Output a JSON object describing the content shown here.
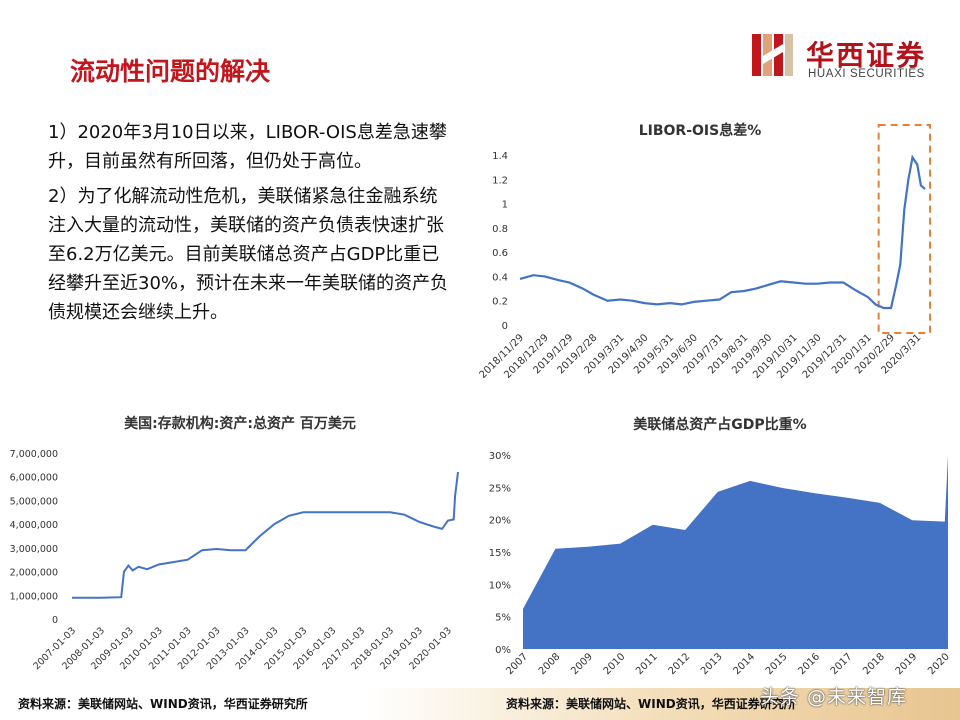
{
  "title": "流动性问题的解决",
  "logo": {
    "cn": "华西证券",
    "en": "HUAXI SECURITIES"
  },
  "paragraphs": [
    "1）2020年3月10日以来，LIBOR-OIS息差急速攀升，目前虽然有所回落，但仍处于高位。",
    "2）为了化解流动性危机，美联储紧急往金融系统注入大量的流动性，美联储的资产负债表快速扩张至6.2万亿美元。目前美联储总资产占GDP比重已经攀升至近30%，预计在未来一年美联储的资产负债规模还会继续上升。"
  ],
  "sources": {
    "left": "资料来源：美联储网站、WIND资讯，华西证券研究所",
    "right": "资料来源：美联储网站、WIND资讯，华西证券研究所"
  },
  "watermark": "头条 @未来智库",
  "colors": {
    "series": "#4472c4",
    "title_red": "#c0161c",
    "highlight_box": "#ed7d31"
  },
  "chart_data": [
    {
      "type": "line",
      "title": "LIBOR-OIS息差%",
      "ylim": [
        0,
        1.4
      ],
      "yticks": [
        "0",
        "0.2",
        "0.4",
        "0.6",
        "0.8",
        "1",
        "1.2",
        "1.4"
      ],
      "xticks": [
        "2018/11/29",
        "2018/12/29",
        "2019/1/29",
        "2019/2/28",
        "2019/3/31",
        "2019/4/30",
        "2019/5/31",
        "2019/6/30",
        "2019/7/31",
        "2019/8/31",
        "2019/9/30",
        "2019/10/31",
        "2019/11/30",
        "2019/12/31",
        "2020/1/31",
        "2020/2/29",
        "2020/3/31"
      ],
      "grid": false,
      "annotation": "dashed orange box highlighting 2020/3",
      "series": [
        {
          "x": [
            "2018/11/29",
            "2018/12/15",
            "2018/12/29",
            "2019/1/15",
            "2019/1/29",
            "2019/2/15",
            "2019/2/28",
            "2019/3/15",
            "2019/3/31",
            "2019/4/15",
            "2019/4/30",
            "2019/5/15",
            "2019/5/31",
            "2019/6/15",
            "2019/6/30",
            "2019/7/15",
            "2019/7/31",
            "2019/8/15",
            "2019/8/31",
            "2019/9/15",
            "2019/9/30",
            "2019/10/15",
            "2019/10/31",
            "2019/11/15",
            "2019/11/30",
            "2019/12/15",
            "2019/12/31",
            "2020/1/15",
            "2020/1/31",
            "2020/2/10",
            "2020/2/20",
            "2020/2/29",
            "2020/3/5",
            "2020/3/10",
            "2020/3/15",
            "2020/3/20",
            "2020/3/25",
            "2020/3/31",
            "2020/4/5",
            "2020/4/10"
          ],
          "y": [
            0.38,
            0.41,
            0.4,
            0.37,
            0.35,
            0.3,
            0.25,
            0.2,
            0.21,
            0.2,
            0.18,
            0.17,
            0.18,
            0.17,
            0.19,
            0.2,
            0.21,
            0.27,
            0.28,
            0.3,
            0.33,
            0.36,
            0.35,
            0.34,
            0.34,
            0.35,
            0.35,
            0.29,
            0.23,
            0.17,
            0.14,
            0.14,
            0.33,
            0.5,
            0.95,
            1.2,
            1.38,
            1.32,
            1.15,
            1.12
          ]
        }
      ]
    },
    {
      "type": "line",
      "title": "美国:存款机构:资产:总资产 百万美元",
      "ylim": [
        0,
        7000000
      ],
      "yticks": [
        "0",
        "1,000,000",
        "2,000,000",
        "3,000,000",
        "4,000,000",
        "5,000,000",
        "6,000,000",
        "7,000,000"
      ],
      "xticks": [
        "2007-01-03",
        "2008-01-03",
        "2009-01-03",
        "2010-01-03",
        "2011-01-03",
        "2012-01-03",
        "2013-01-03",
        "2014-01-03",
        "2015-01-03",
        "2016-01-03",
        "2017-01-03",
        "2018-01-03",
        "2019-01-03",
        "2020-01-03"
      ],
      "grid": false,
      "series": [
        {
          "x": [
            2007.0,
            2008.0,
            2008.7,
            2008.8,
            2008.95,
            2009.1,
            2009.3,
            2009.6,
            2010.0,
            2010.5,
            2011.0,
            2011.5,
            2012.0,
            2012.5,
            2013.0,
            2013.5,
            2014.0,
            2014.5,
            2015.0,
            2016.0,
            2017.0,
            2018.0,
            2018.5,
            2019.0,
            2019.5,
            2019.8,
            2020.0,
            2020.2,
            2020.25,
            2020.35
          ],
          "y": [
            900000,
            900000,
            920000,
            2000000,
            2250000,
            2050000,
            2200000,
            2100000,
            2300000,
            2400000,
            2500000,
            2900000,
            2950000,
            2900000,
            2900000,
            3500000,
            4000000,
            4350000,
            4500000,
            4500000,
            4500000,
            4500000,
            4400000,
            4100000,
            3900000,
            3800000,
            4150000,
            4200000,
            5200000,
            6200000
          ]
        }
      ]
    },
    {
      "type": "area",
      "title": "美联储总资产占GDP比重%",
      "ylim": [
        0,
        30
      ],
      "yticks": [
        "0%",
        "5%",
        "10%",
        "15%",
        "20%",
        "25%",
        "30%"
      ],
      "categories": [
        "2007",
        "2008",
        "2009",
        "2010",
        "2011",
        "2012",
        "2013",
        "2014",
        "2015",
        "2016",
        "2017",
        "2018",
        "2019",
        "2020"
      ],
      "grid": false,
      "series": [
        {
          "x": [
            2007.0,
            2008.0,
            2009.0,
            2010.0,
            2011.0,
            2012.0,
            2013.0,
            2014.0,
            2015.0,
            2016.0,
            2017.0,
            2018.0,
            2019.0,
            2020.0,
            2020.1
          ],
          "y": [
            6.2,
            15.5,
            15.8,
            16.3,
            19.2,
            18.4,
            24.3,
            26.0,
            24.9,
            24.1,
            23.4,
            22.6,
            19.9,
            19.7,
            30
          ]
        }
      ]
    }
  ]
}
